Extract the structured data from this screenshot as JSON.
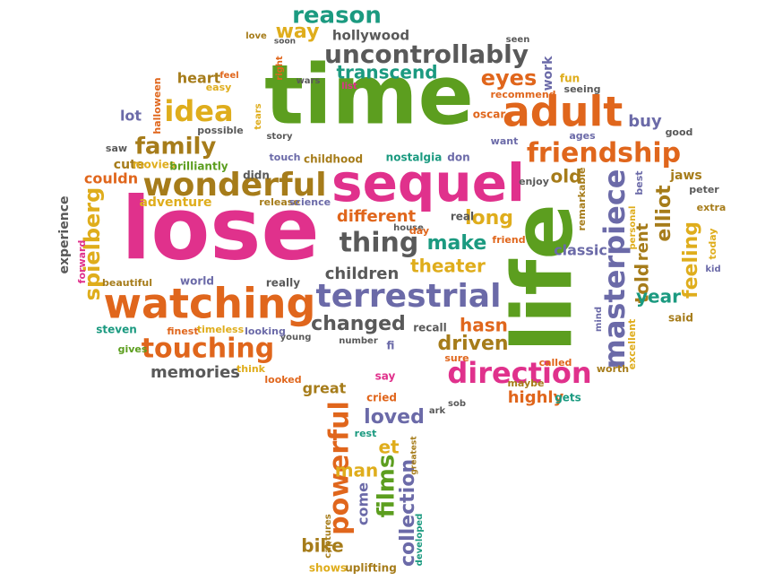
{
  "palette": {
    "green": "#5c9e1f",
    "magenta": "#e0318c",
    "orange": "#e0661c",
    "olive": "#a67c1a",
    "purple": "#6b6aa8",
    "gray": "#595959",
    "teal": "#1b9a80",
    "yellow": "#dfad1c"
  },
  "words": [
    {
      "text": "time",
      "color": "green"
    },
    {
      "text": "lose",
      "color": "magenta"
    },
    {
      "text": "life",
      "color": "green"
    },
    {
      "text": "sequel",
      "color": "magenta"
    },
    {
      "text": "watching",
      "color": "orange"
    },
    {
      "text": "adult",
      "color": "orange"
    },
    {
      "text": "terrestrial",
      "color": "purple"
    },
    {
      "text": "wonderful",
      "color": "olive"
    },
    {
      "text": "uncontrollably",
      "color": "gray"
    },
    {
      "text": "friendship",
      "color": "orange"
    },
    {
      "text": "direction",
      "color": "magenta"
    },
    {
      "text": "masterpiece",
      "color": "purple"
    },
    {
      "text": "thing",
      "color": "gray"
    },
    {
      "text": "touching",
      "color": "orange"
    },
    {
      "text": "idea",
      "color": "yellow"
    },
    {
      "text": "reason",
      "color": "teal"
    },
    {
      "text": "family",
      "color": "olive"
    },
    {
      "text": "powerful",
      "color": "orange"
    },
    {
      "text": "changed",
      "color": "gray"
    },
    {
      "text": "spielberg",
      "color": "yellow"
    },
    {
      "text": "films",
      "color": "green"
    },
    {
      "text": "collection",
      "color": "purple"
    },
    {
      "text": "eyes",
      "color": "orange"
    },
    {
      "text": "feeling",
      "color": "yellow"
    },
    {
      "text": "loved",
      "color": "purple"
    },
    {
      "text": "driven",
      "color": "olive"
    },
    {
      "text": "theater",
      "color": "yellow"
    },
    {
      "text": "make",
      "color": "teal"
    },
    {
      "text": "long",
      "color": "yellow"
    },
    {
      "text": "told",
      "color": "olive"
    },
    {
      "text": "elliot",
      "color": "olive"
    },
    {
      "text": "rent",
      "color": "olive"
    },
    {
      "text": "year",
      "color": "teal"
    },
    {
      "text": "old",
      "color": "olive"
    },
    {
      "text": "buy",
      "color": "purple"
    },
    {
      "text": "different",
      "color": "orange"
    },
    {
      "text": "transcend",
      "color": "teal"
    },
    {
      "text": "children",
      "color": "gray"
    },
    {
      "text": "hasn",
      "color": "orange"
    },
    {
      "text": "classic",
      "color": "purple"
    },
    {
      "text": "memories",
      "color": "gray"
    },
    {
      "text": "highly",
      "color": "orange"
    },
    {
      "text": "man",
      "color": "yellow"
    },
    {
      "text": "et",
      "color": "yellow"
    },
    {
      "text": "bike",
      "color": "olive"
    },
    {
      "text": "way",
      "color": "yellow"
    },
    {
      "text": "heart",
      "color": "olive"
    },
    {
      "text": "jaws",
      "color": "olive"
    },
    {
      "text": "lot",
      "color": "purple"
    },
    {
      "text": "cute",
      "color": "olive"
    },
    {
      "text": "couldn",
      "color": "orange"
    },
    {
      "text": "adventure",
      "color": "yellow"
    },
    {
      "text": "great",
      "color": "olive"
    },
    {
      "text": "come",
      "color": "purple"
    },
    {
      "text": "hollywood",
      "color": "gray"
    },
    {
      "text": "experience",
      "color": "gray"
    },
    {
      "text": "work",
      "color": "purple"
    },
    {
      "text": "shows",
      "color": "yellow"
    },
    {
      "text": "uplifting",
      "color": "olive"
    },
    {
      "text": "said",
      "color": "olive"
    },
    {
      "text": "fun",
      "color": "yellow"
    },
    {
      "text": "seeing",
      "color": "gray"
    },
    {
      "text": "recommend",
      "color": "orange"
    },
    {
      "text": "oscar",
      "color": "orange"
    },
    {
      "text": "ages",
      "color": "purple"
    },
    {
      "text": "good",
      "color": "gray"
    },
    {
      "text": "want",
      "color": "purple"
    },
    {
      "text": "enjoy",
      "color": "gray"
    },
    {
      "text": "remarkable",
      "color": "olive"
    },
    {
      "text": "best",
      "color": "purple"
    },
    {
      "text": "peter",
      "color": "gray"
    },
    {
      "text": "extra",
      "color": "olive"
    },
    {
      "text": "today",
      "color": "yellow"
    },
    {
      "text": "kid",
      "color": "purple"
    },
    {
      "text": "personal",
      "color": "yellow"
    },
    {
      "text": "friend",
      "color": "orange"
    },
    {
      "text": "real",
      "color": "gray"
    },
    {
      "text": "house",
      "color": "gray"
    },
    {
      "text": "day",
      "color": "orange"
    },
    {
      "text": "mind",
      "color": "purple"
    },
    {
      "text": "excellent",
      "color": "yellow"
    },
    {
      "text": "worth",
      "color": "olive"
    },
    {
      "text": "called",
      "color": "orange"
    },
    {
      "text": "maybe",
      "color": "olive"
    },
    {
      "text": "gets",
      "color": "teal"
    },
    {
      "text": "sob",
      "color": "gray"
    },
    {
      "text": "ark",
      "color": "gray"
    },
    {
      "text": "greatest",
      "color": "olive"
    },
    {
      "text": "rest",
      "color": "teal"
    },
    {
      "text": "cried",
      "color": "orange"
    },
    {
      "text": "say",
      "color": "magenta"
    },
    {
      "text": "sure",
      "color": "orange"
    },
    {
      "text": "recall",
      "color": "gray"
    },
    {
      "text": "fi",
      "color": "purple"
    },
    {
      "text": "number",
      "color": "gray"
    },
    {
      "text": "young",
      "color": "gray"
    },
    {
      "text": "looking",
      "color": "purple"
    },
    {
      "text": "timeless",
      "color": "yellow"
    },
    {
      "text": "finest",
      "color": "orange"
    },
    {
      "text": "steven",
      "color": "teal"
    },
    {
      "text": "gives",
      "color": "green"
    },
    {
      "text": "beautiful",
      "color": "olive"
    },
    {
      "text": "forward",
      "color": "magenta"
    },
    {
      "text": "world",
      "color": "purple"
    },
    {
      "text": "really",
      "color": "gray"
    },
    {
      "text": "think",
      "color": "yellow"
    },
    {
      "text": "looked",
      "color": "orange"
    },
    {
      "text": "captures",
      "color": "olive"
    },
    {
      "text": "developed",
      "color": "teal"
    },
    {
      "text": "release",
      "color": "olive"
    },
    {
      "text": "science",
      "color": "purple"
    },
    {
      "text": "didn",
      "color": "gray"
    },
    {
      "text": "touch",
      "color": "purple"
    },
    {
      "text": "childhood",
      "color": "olive"
    },
    {
      "text": "nostalgia",
      "color": "teal"
    },
    {
      "text": "don",
      "color": "purple"
    },
    {
      "text": "movies",
      "color": "yellow"
    },
    {
      "text": "brilliantly",
      "color": "green"
    },
    {
      "text": "saw",
      "color": "gray"
    },
    {
      "text": "halloween",
      "color": "orange"
    },
    {
      "text": "possible",
      "color": "gray"
    },
    {
      "text": "easy",
      "color": "yellow"
    },
    {
      "text": "feel",
      "color": "orange"
    },
    {
      "text": "tears",
      "color": "yellow"
    },
    {
      "text": "story",
      "color": "gray"
    },
    {
      "text": "right",
      "color": "orange"
    },
    {
      "text": "love",
      "color": "olive"
    },
    {
      "text": "soon",
      "color": "gray"
    },
    {
      "text": "wars",
      "color": "gray"
    },
    {
      "text": "list",
      "color": "magenta"
    },
    {
      "text": "seen",
      "color": "gray"
    }
  ]
}
